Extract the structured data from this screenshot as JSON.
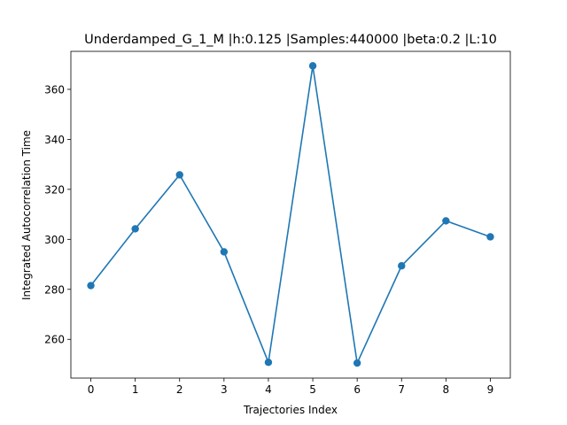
{
  "chart_data": {
    "type": "line",
    "title": "Underdamped_G_1_M |h:0.125 |Samples:440000 |beta:0.2 |L:10",
    "xlabel": "Trajectories Index",
    "ylabel": "Integrated Autocorrelation Time",
    "x": [
      0,
      1,
      2,
      3,
      4,
      5,
      6,
      7,
      8,
      9
    ],
    "series": [
      {
        "values": [
          281.5,
          304.2,
          325.8,
          295.0,
          250.8,
          369.4,
          250.5,
          289.4,
          307.4,
          301.0
        ],
        "color": "#1f77b4",
        "marker": "circle"
      }
    ],
    "xlim": [
      -0.45,
      9.45
    ],
    "ylim": [
      244.5,
      375.2
    ],
    "xticks": [
      0,
      1,
      2,
      3,
      4,
      5,
      6,
      7,
      8,
      9
    ],
    "yticks": [
      260,
      280,
      300,
      320,
      340,
      360
    ],
    "grid": false,
    "legend": "none"
  }
}
